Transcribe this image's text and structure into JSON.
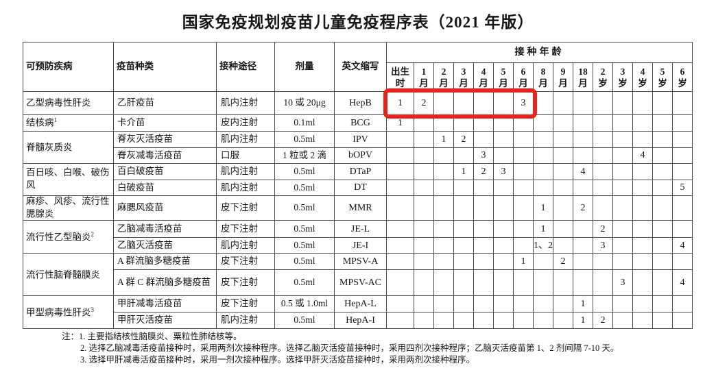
{
  "title": "国家免疫规划疫苗儿童免疫程序表（2021 年版）",
  "highlight": {
    "color": "#e8231c",
    "start_index": 0,
    "end_index": 6
  },
  "table": {
    "headers": {
      "disease": "可预防疾病",
      "vaccine": "疫苗种类",
      "route": "接种途径",
      "dose": "剂量",
      "abbr": "英文缩写",
      "age_group": "接种年龄",
      "ages": [
        {
          "l1": "出生",
          "l2": "时"
        },
        {
          "l1": "1",
          "l2": "月"
        },
        {
          "l1": "2",
          "l2": "月"
        },
        {
          "l1": "3",
          "l2": "月"
        },
        {
          "l1": "4",
          "l2": "月"
        },
        {
          "l1": "5",
          "l2": "月"
        },
        {
          "l1": "6",
          "l2": "月"
        },
        {
          "l1": "8",
          "l2": "月"
        },
        {
          "l1": "9",
          "l2": "月"
        },
        {
          "l1": "18",
          "l2": "月"
        },
        {
          "l1": "2",
          "l2": "岁"
        },
        {
          "l1": "3",
          "l2": "岁"
        },
        {
          "l1": "4",
          "l2": "岁"
        },
        {
          "l1": "5",
          "l2": "岁"
        },
        {
          "l1": "6",
          "l2": "岁"
        }
      ]
    },
    "groups": [
      {
        "disease": "乙型病毒性肝炎",
        "sup": "",
        "rows": [
          {
            "vaccine": "乙肝疫苗",
            "route": "肌内注射",
            "dose": "10 或 20μg",
            "abbr": "HepB",
            "doses": [
              "1",
              "2",
              "",
              "",
              "",
              "",
              "3",
              "",
              "",
              "",
              "",
              "",
              "",
              "",
              ""
            ]
          }
        ]
      },
      {
        "disease": "结核病",
        "sup": "1",
        "rows": [
          {
            "vaccine": "卡介苗",
            "route": "皮内注射",
            "dose": "0.1ml",
            "abbr": "BCG",
            "doses": [
              "1",
              "",
              "",
              "",
              "",
              "",
              "",
              "",
              "",
              "",
              "",
              "",
              "",
              "",
              ""
            ]
          }
        ]
      },
      {
        "disease": "脊髓灰质炎",
        "sup": "",
        "rows": [
          {
            "vaccine": "脊灰灭活疫苗",
            "route": "肌内注射",
            "dose": "0.5ml",
            "abbr": "IPV",
            "doses": [
              "",
              "",
              "1",
              "2",
              "",
              "",
              "",
              "",
              "",
              "",
              "",
              "",
              "",
              "",
              ""
            ]
          },
          {
            "vaccine": "脊灰减毒活疫苗",
            "route": "口服",
            "dose": "1 粒或 2 滴",
            "abbr": "bOPV",
            "doses": [
              "",
              "",
              "",
              "",
              "3",
              "",
              "",
              "",
              "",
              "",
              "",
              "",
              "4",
              "",
              ""
            ]
          }
        ]
      },
      {
        "disease": "百日咳、白喉、破伤风",
        "sup": "",
        "rows": [
          {
            "vaccine": "百白破疫苗",
            "route": "肌内注射",
            "dose": "0.5ml",
            "abbr": "DTaP",
            "doses": [
              "",
              "",
              "",
              "1",
              "2",
              "3",
              "",
              "",
              "",
              "4",
              "",
              "",
              "",
              "",
              ""
            ]
          },
          {
            "vaccine": "白破疫苗",
            "route": "肌内注射",
            "dose": "0.5ml",
            "abbr": "DT",
            "doses": [
              "",
              "",
              "",
              "",
              "",
              "",
              "",
              "",
              "",
              "",
              "",
              "",
              "",
              "",
              "5"
            ]
          }
        ]
      },
      {
        "disease": "麻疹、风疹、流行性腮腺炎",
        "sup": "",
        "rows": [
          {
            "vaccine": "麻腮风疫苗",
            "route": "皮下注射",
            "dose": "0.5ml",
            "abbr": "MMR",
            "doses": [
              "",
              "",
              "",
              "",
              "",
              "",
              "",
              "1",
              "",
              "2",
              "",
              "",
              "",
              "",
              ""
            ]
          }
        ]
      },
      {
        "disease": "流行性乙型脑炎",
        "sup": "2",
        "rows": [
          {
            "vaccine": "乙脑减毒活疫苗",
            "route": "皮下注射",
            "dose": "0.5ml",
            "abbr": "JE-L",
            "doses": [
              "",
              "",
              "",
              "",
              "",
              "",
              "",
              "1",
              "",
              "",
              "2",
              "",
              "",
              "",
              ""
            ]
          },
          {
            "vaccine": "乙脑灭活疫苗",
            "route": "肌内注射",
            "dose": "0.5ml",
            "abbr": "JE-I",
            "doses": [
              "",
              "",
              "",
              "",
              "",
              "",
              "",
              "1、2",
              "",
              "",
              "3",
              "",
              "",
              "",
              "4"
            ]
          }
        ]
      },
      {
        "disease": "流行性脑脊髓膜炎",
        "sup": "",
        "rows": [
          {
            "vaccine": "A 群流脑多糖疫苗",
            "route": "皮下注射",
            "dose": "0.5ml",
            "abbr": "MPSV-A",
            "doses": [
              "",
              "",
              "",
              "",
              "",
              "",
              "1",
              "",
              "2",
              "",
              "",
              "",
              "",
              "",
              ""
            ]
          },
          {
            "vaccine": "A 群 C 群流脑多糖疫苗",
            "route": "皮下注射",
            "dose": "0.5ml",
            "abbr": "MPSV-AC",
            "doses": [
              "",
              "",
              "",
              "",
              "",
              "",
              "",
              "",
              "",
              "",
              "",
              "3",
              "",
              "",
              "4"
            ]
          }
        ]
      },
      {
        "disease": "甲型病毒性肝炎",
        "sup": "3",
        "rows": [
          {
            "vaccine": "甲肝减毒活疫苗",
            "route": "皮下注射",
            "dose": "0.5 或 1.0ml",
            "abbr": "HepA-L",
            "doses": [
              "",
              "",
              "",
              "",
              "",
              "",
              "",
              "",
              "",
              "1",
              "",
              "",
              "",
              "",
              ""
            ]
          },
          {
            "vaccine": "甲肝灭活疫苗",
            "route": "肌内注射",
            "dose": "0.5ml",
            "abbr": "HepA-I",
            "doses": [
              "",
              "",
              "",
              "",
              "",
              "",
              "",
              "",
              "",
              "1",
              "2",
              "",
              "",
              "",
              ""
            ]
          }
        ]
      }
    ]
  },
  "notes": {
    "prefix": "注：",
    "items": [
      "1. 主要指结核性脑膜炎、粟粒性肺结核等。",
      "2. 选择乙脑减毒活疫苗接种时，采用两剂次接种程序。选择乙脑灭活疫苗接种时，采用四剂次接种程序；乙脑灭活疫苗第 1、2 剂间隔 7-10 天。",
      "3. 选择甲肝减毒活疫苗接种时，采用一剂次接种程序。选择甲肝灭活疫苗接种时，采用两剂次接种程序。"
    ]
  }
}
